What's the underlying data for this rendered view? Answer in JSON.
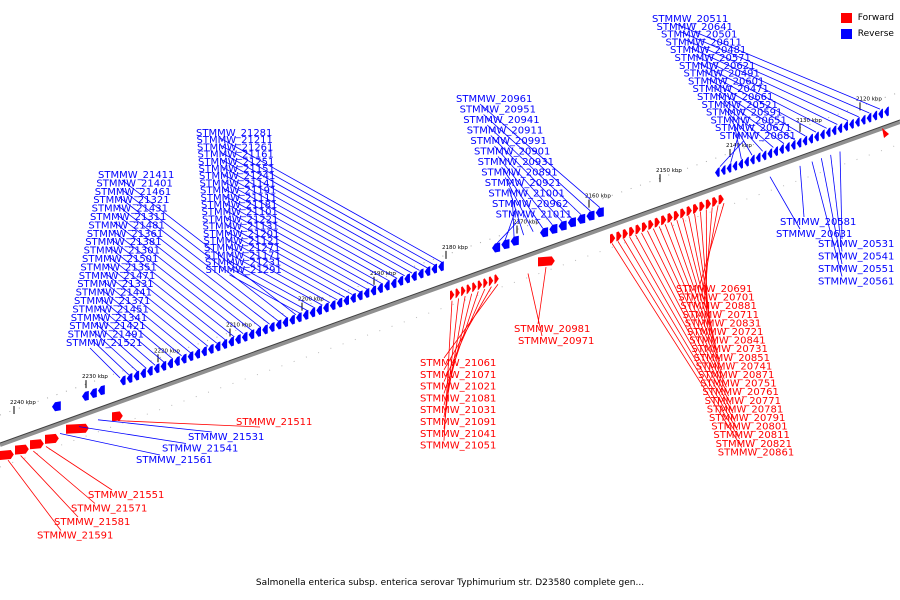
{
  "caption": "Salmonella enterica subsp. enterica serovar Typhimurium str. D23580 complete gen...",
  "legend": [
    {
      "label": "Forward",
      "color": "#ff0000"
    },
    {
      "label": "Reverse",
      "color": "#0000ff"
    }
  ],
  "scale_ticks": [
    "2240 kbp",
    "2230 kbp",
    "2220 kbp",
    "2210 kbp",
    "2200 kbp",
    "2190 kbp",
    "2180 kbp",
    "2170 kbp",
    "2160 kbp",
    "2150 kbp",
    "2140 kbp",
    "2130 kbp",
    "2120 kbp"
  ],
  "reverse_top_labels": [
    "STMMW_20511",
    "STMMW_20641",
    "STMMW_20501",
    "STMMW_20611",
    "STMMW_20481",
    "STMMW_20571",
    "STMMW_20621",
    "STMMW_20491",
    "STMMW_20601",
    "STMMW_20471",
    "STMMW_20661",
    "STMMW_20521",
    "STMMW_20591",
    "STMMW_20651",
    "STMMW_20671",
    "STMMW_20681",
    "STMMW_20961",
    "STMMW_20951",
    "STMMW_20941",
    "STMMW_20911",
    "STMMW_20991",
    "STMMW_20901",
    "STMMW_20931",
    "STMMW_20891",
    "STMMW_20921",
    "STMMW_21001",
    "STMMW_20962",
    "STMMW_21011",
    "STMMW_21281",
    "STMMW_21211",
    "STMMW_21261",
    "STMMW_21161",
    "STMMW_21251",
    "STMMW_21151",
    "STMMW_21241",
    "STMMW_21141",
    "STMMW_21191",
    "STMMW_21111",
    "STMMW_21181",
    "STMMW_21101",
    "STMMW_21221",
    "STMMW_21131",
    "STMMW_21201",
    "STMMW_21121",
    "STMMW_21271",
    "STMMW_21171",
    "STMMW_21231",
    "STMMW_21291",
    "STMMW_21411",
    "STMMW_21401",
    "STMMW_21461",
    "STMMW_21321",
    "STMMW_21431",
    "STMMW_21311",
    "STMMW_21481",
    "STMMW_21361",
    "STMMW_21381",
    "STMMW_21301",
    "STMMW_21501",
    "STMMW_21351",
    "STMMW_21471",
    "STMMW_21331",
    "STMMW_21441",
    "STMMW_21371",
    "STMMW_21451",
    "STMMW_21341",
    "STMMW_21421",
    "STMMW_21491",
    "STMMW_21521"
  ],
  "reverse_bottom_labels": [
    "STMMW_20581",
    "STMMW_20631",
    "STMMW_20531",
    "STMMW_20541",
    "STMMW_20551",
    "STMMW_20561",
    "STMMW_21531",
    "STMMW_21541",
    "STMMW_21561"
  ],
  "forward_labels": [
    "STMMW_20691",
    "STMMW_20701",
    "STMMW_20881",
    "STMMW_20711",
    "STMMW_20831",
    "STMMW_20721",
    "STMMW_20841",
    "STMMW_20731",
    "STMMW_20851",
    "STMMW_20741",
    "STMMW_20871",
    "STMMW_20751",
    "STMMW_20761",
    "STMMW_20771",
    "STMMW_20781",
    "STMMW_20791",
    "STMMW_20801",
    "STMMW_20811",
    "STMMW_20821",
    "STMMW_20861",
    "STMMW_20981",
    "STMMW_20971",
    "STMMW_21061",
    "STMMW_21071",
    "STMMW_21021",
    "STMMW_21081",
    "STMMW_21031",
    "STMMW_21091",
    "STMMW_21041",
    "STMMW_21051",
    "STMMW_21511",
    "STMMW_21551",
    "STMMW_21571",
    "STMMW_21581",
    "STMMW_21591"
  ]
}
